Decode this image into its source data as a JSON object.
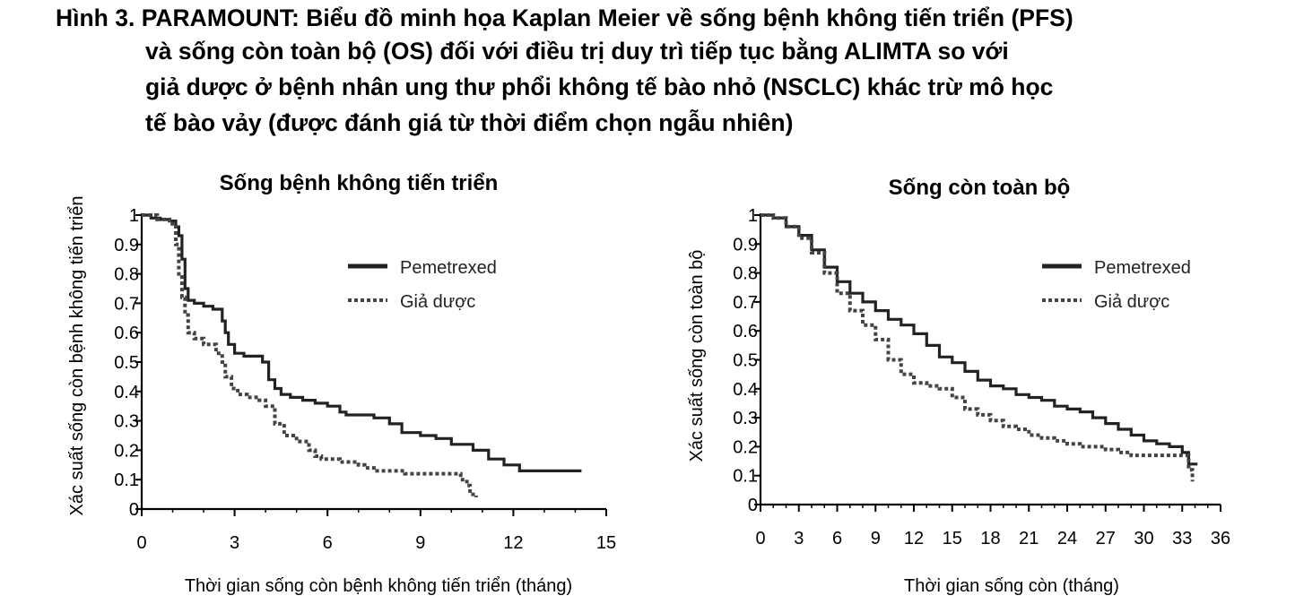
{
  "caption": {
    "lines": [
      "Hình 3. PARAMOUNT: Biểu đồ minh họa Kaplan Meier về sống bệnh không tiến triển (PFS)",
      "và sống còn toàn bộ (OS) đối với điều trị duy trì tiếp tục bằng ALIMTA so với",
      "giả dược ở bệnh nhân ung thư phổi không tế bào nhỏ (NSCLC) khác trừ mô học",
      "tế bào vảy (được đánh giá từ thời điểm chọn ngẫu nhiên)"
    ]
  },
  "chart_data": [
    {
      "type": "line",
      "title": "Sống bệnh không tiến triển",
      "xlabel": "Thời gian sống còn bệnh không tiến triển (tháng)",
      "ylabel": "Xác suất sống còn bệnh không tiến triển",
      "xlim": [
        0,
        15
      ],
      "ylim": [
        0,
        1
      ],
      "xticks": [
        "0",
        "3",
        "6",
        "9",
        "12",
        "15"
      ],
      "yticks": [
        "0",
        "0.1",
        "0.2",
        "0.3",
        "0.4",
        "0.5",
        "0.6",
        "0.7",
        "0.8",
        "0.9",
        "1"
      ],
      "legend_position": "top-right",
      "series": [
        {
          "name": "Pemetrexed",
          "style": "solid",
          "x": [
            0,
            0.3,
            0.6,
            0.9,
            1.1,
            1.2,
            1.3,
            1.4,
            1.5,
            1.7,
            2.0,
            2.3,
            2.6,
            2.7,
            2.8,
            3.0,
            3.3,
            3.6,
            3.9,
            4.1,
            4.3,
            4.5,
            4.8,
            5.2,
            5.6,
            6.0,
            6.4,
            6.6,
            7.0,
            7.5,
            8.0,
            8.4,
            9.0,
            9.5,
            10.0,
            10.7,
            11.2,
            11.7,
            12.2,
            12.7,
            14.2
          ],
          "y": [
            1,
            0.99,
            0.985,
            0.98,
            0.96,
            0.93,
            0.85,
            0.75,
            0.71,
            0.7,
            0.69,
            0.68,
            0.64,
            0.6,
            0.56,
            0.53,
            0.52,
            0.52,
            0.5,
            0.44,
            0.41,
            0.39,
            0.38,
            0.37,
            0.36,
            0.35,
            0.33,
            0.32,
            0.32,
            0.31,
            0.29,
            0.26,
            0.25,
            0.24,
            0.22,
            0.2,
            0.17,
            0.15,
            0.13,
            0.13,
            0.13
          ]
        },
        {
          "name": "Giả dược",
          "style": "dashed",
          "x": [
            0,
            0.5,
            0.9,
            1.1,
            1.2,
            1.3,
            1.4,
            1.5,
            1.7,
            2.0,
            2.4,
            2.6,
            2.7,
            2.9,
            3.1,
            3.4,
            3.8,
            4.0,
            4.3,
            4.6,
            5.0,
            5.4,
            5.6,
            5.8,
            6.0,
            6.4,
            7.0,
            7.2,
            7.6,
            8.0,
            8.5,
            9.0,
            9.5,
            10.0,
            10.3,
            10.5,
            10.6,
            10.8
          ],
          "y": [
            1,
            0.985,
            0.97,
            0.9,
            0.8,
            0.72,
            0.66,
            0.6,
            0.58,
            0.56,
            0.53,
            0.5,
            0.45,
            0.41,
            0.39,
            0.38,
            0.37,
            0.35,
            0.29,
            0.25,
            0.23,
            0.2,
            0.18,
            0.17,
            0.17,
            0.16,
            0.15,
            0.14,
            0.13,
            0.13,
            0.12,
            0.12,
            0.12,
            0.12,
            0.1,
            0.08,
            0.05,
            0.04
          ]
        }
      ]
    },
    {
      "type": "line",
      "title": "Sống còn toàn bộ",
      "xlabel": "Thời gian sống còn (tháng)",
      "ylabel": "Xác suất sống còn toàn bộ",
      "xlim": [
        0,
        36
      ],
      "ylim": [
        0,
        1
      ],
      "xticks": [
        "0",
        "3",
        "6",
        "9",
        "12",
        "15",
        "18",
        "21",
        "24",
        "27",
        "30",
        "33",
        "36"
      ],
      "yticks": [
        "0",
        "0.1",
        "0.2",
        "0.3",
        "0.4",
        "0.5",
        "0.6",
        "0.7",
        "0.8",
        "0.9",
        "1"
      ],
      "legend_position": "top-right",
      "series": [
        {
          "name": "Pemetrexed",
          "style": "solid",
          "x": [
            0,
            1,
            2,
            3,
            4,
            5,
            6,
            7,
            8,
            9,
            10,
            11,
            12,
            13,
            14,
            15,
            16,
            17,
            18,
            19,
            20,
            21,
            22,
            23,
            24,
            25,
            26,
            27,
            28,
            29,
            30,
            31,
            32,
            33,
            33.5,
            34.2
          ],
          "y": [
            1,
            0.99,
            0.96,
            0.93,
            0.88,
            0.82,
            0.77,
            0.73,
            0.7,
            0.67,
            0.64,
            0.62,
            0.59,
            0.55,
            0.51,
            0.49,
            0.46,
            0.43,
            0.41,
            0.4,
            0.38,
            0.37,
            0.36,
            0.34,
            0.33,
            0.32,
            0.3,
            0.28,
            0.26,
            0.24,
            0.22,
            0.21,
            0.2,
            0.18,
            0.14,
            0.14
          ]
        },
        {
          "name": "Giả dược",
          "style": "dashed",
          "x": [
            0,
            1,
            2,
            3,
            4,
            5,
            6,
            7,
            8,
            9,
            10,
            11,
            12,
            13,
            14,
            15,
            16,
            17,
            18,
            19,
            20,
            21,
            22,
            23,
            24,
            25,
            26,
            27,
            28,
            29,
            30,
            31,
            32,
            33,
            33.5,
            33.8
          ],
          "y": [
            1,
            0.99,
            0.96,
            0.92,
            0.87,
            0.8,
            0.73,
            0.67,
            0.62,
            0.57,
            0.5,
            0.45,
            0.42,
            0.41,
            0.4,
            0.37,
            0.33,
            0.31,
            0.29,
            0.27,
            0.26,
            0.24,
            0.23,
            0.22,
            0.21,
            0.2,
            0.2,
            0.19,
            0.18,
            0.17,
            0.17,
            0.17,
            0.17,
            0.17,
            0.12,
            0.08
          ]
        }
      ]
    }
  ]
}
